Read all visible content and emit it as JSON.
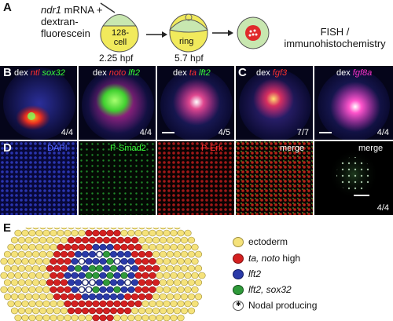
{
  "panels": {
    "A": {
      "label": "A",
      "injection_text_line1": "ndr1",
      "injection_text_line1b": " mRNA +",
      "injection_text_line2": "dextran-",
      "injection_text_line3": "fluorescein",
      "stage1_cell": "128-",
      "stage1_cell2": "cell",
      "stage1_time": "2.25 hpf",
      "stage2_cell": "ring",
      "stage2_time": "5.7 hpf",
      "readout_line1": "FISH /",
      "readout_line2": "immunohistochemistry"
    },
    "B": {
      "label": "B",
      "images": [
        {
          "parts": [
            "dex ",
            "ntl",
            " ",
            "sox32"
          ],
          "count": "4/4"
        },
        {
          "parts": [
            "dex ",
            "noto",
            " ",
            "lft2"
          ],
          "count": "4/4"
        },
        {
          "parts": [
            "dex ",
            "ta",
            " ",
            "lft2"
          ],
          "count": "4/5"
        }
      ]
    },
    "C": {
      "label": "C",
      "images": [
        {
          "parts": [
            "dex ",
            "fgf3"
          ],
          "count": "7/7"
        },
        {
          "parts": [
            "dex ",
            "fgf8a"
          ],
          "count": "4/4"
        }
      ]
    },
    "D": {
      "label": "D",
      "images": [
        {
          "title": "DAPI"
        },
        {
          "title": "P-Smad2"
        },
        {
          "title": "P-Erk"
        },
        {
          "title": "merge"
        },
        {
          "title": "merge",
          "count": "4/4"
        }
      ]
    },
    "E": {
      "label": "E",
      "legend": [
        {
          "text": "ectoderm",
          "color": "#f5e27a"
        },
        {
          "text_it": "ta, noto",
          "text": " high",
          "color": "#d42020"
        },
        {
          "text_it": "lft2",
          "text": "",
          "color": "#2a3aa8"
        },
        {
          "text_it": "lft2, sox32",
          "text": "",
          "color": "#2f9a3a"
        },
        {
          "text": "Nodal producing",
          "color": "#ffffff"
        }
      ]
    }
  }
}
